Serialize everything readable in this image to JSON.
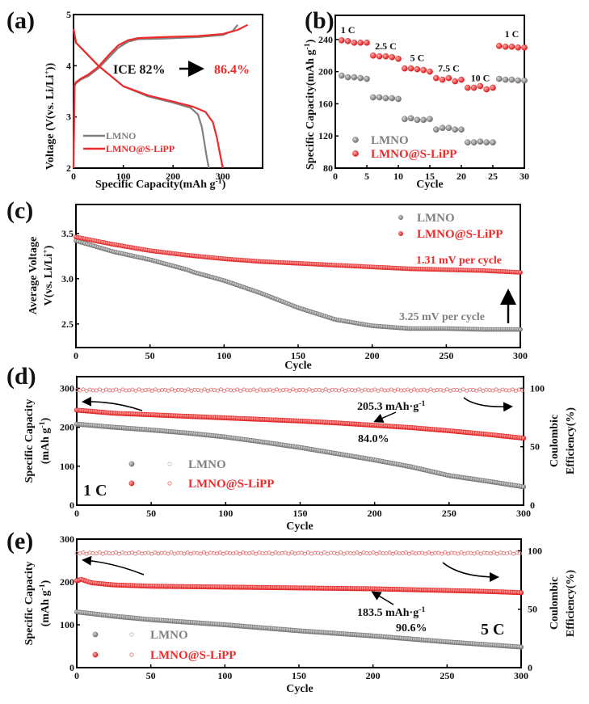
{
  "colors": {
    "lmno": "#808080",
    "lipp": "#ee2a2a",
    "ink": "#111111",
    "arrow": "#000000"
  },
  "chart_data": [
    {
      "panel": "(a)",
      "type": "line",
      "xlabel": "Specific Capacity(mAh g",
      "xlabel_sup": "-1",
      "xlabel_end": ")",
      "ylabel": "Voltage (V(vs. Li/Li",
      "ylabel_sup": "+",
      "ylabel_end": "))",
      "xlim": [
        0,
        380
      ],
      "ylim": [
        2,
        5
      ],
      "xticks": [
        0,
        100,
        200,
        300
      ],
      "yticks": [
        2,
        3,
        4,
        5
      ],
      "legend": [
        "LMNO",
        "LMNO@S-LiPP"
      ],
      "legend_position": "bottom-left",
      "annotation": {
        "text": "ICE 82%",
        "value_text": "86.4%"
      },
      "series": [
        {
          "name": "LMNO charge",
          "x": [
            0,
            2,
            5,
            15,
            30,
            50,
            70,
            90,
            110,
            130,
            180,
            250,
            300,
            320,
            330
          ],
          "y": [
            2.0,
            3.6,
            3.66,
            3.73,
            3.8,
            3.95,
            4.15,
            4.35,
            4.47,
            4.52,
            4.53,
            4.56,
            4.6,
            4.68,
            4.8
          ]
        },
        {
          "name": "LMNO discharge",
          "x": [
            0,
            5,
            20,
            50,
            100,
            150,
            200,
            235,
            250,
            258,
            263,
            268,
            272
          ],
          "y": [
            4.72,
            4.45,
            4.3,
            4.0,
            3.6,
            3.4,
            3.28,
            3.18,
            3.05,
            2.8,
            2.5,
            2.2,
            2.0
          ]
        },
        {
          "name": "LMNO@S-LiPP charge",
          "x": [
            0,
            2,
            5,
            15,
            30,
            50,
            70,
            90,
            110,
            130,
            180,
            250,
            300,
            330,
            350
          ],
          "y": [
            2.0,
            3.62,
            3.68,
            3.75,
            3.83,
            3.98,
            4.2,
            4.4,
            4.5,
            4.54,
            4.56,
            4.58,
            4.62,
            4.7,
            4.8
          ]
        },
        {
          "name": "LMNO@S-LiPP discharge",
          "x": [
            0,
            5,
            20,
            50,
            100,
            150,
            200,
            240,
            265,
            280,
            288,
            294,
            300
          ],
          "y": [
            4.72,
            4.45,
            4.3,
            4.0,
            3.6,
            3.42,
            3.3,
            3.2,
            3.1,
            2.9,
            2.6,
            2.3,
            2.0
          ]
        }
      ]
    },
    {
      "panel": "(b)",
      "type": "scatter",
      "xlabel": "Cycle",
      "ylabel": "Specific Capacity(mAh g",
      "ylabel_sup": "-1",
      "ylabel_end": ")",
      "xlim": [
        0,
        30
      ],
      "ylim": [
        80,
        270
      ],
      "xticks": [
        0,
        5,
        10,
        15,
        20,
        25,
        30
      ],
      "yticks": [
        80,
        120,
        160,
        200,
        240
      ],
      "legend": [
        "LMNO",
        "LMNO@S-LiPP"
      ],
      "legend_position": "bottom-left",
      "rate_labels": [
        {
          "text": "1 C",
          "x": 2,
          "y": 248
        },
        {
          "text": "2.5 C",
          "x": 8,
          "y": 228
        },
        {
          "text": "5 C",
          "x": 13,
          "y": 213
        },
        {
          "text": "7.5 C",
          "x": 18,
          "y": 200
        },
        {
          "text": "10 C",
          "x": 23,
          "y": 188
        },
        {
          "text": "1 C",
          "x": 28,
          "y": 243
        }
      ],
      "series": [
        {
          "name": "LMNO",
          "x": [
            1,
            2,
            3,
            4,
            5,
            6,
            7,
            8,
            9,
            10,
            11,
            12,
            13,
            14,
            15,
            16,
            17,
            18,
            19,
            20,
            21,
            22,
            23,
            24,
            25,
            26,
            27,
            28,
            29,
            30
          ],
          "values": [
            195,
            193,
            193,
            192,
            191,
            168,
            168,
            167,
            167,
            166,
            141,
            142,
            140,
            140,
            141,
            128,
            130,
            130,
            128,
            128,
            112,
            112,
            113,
            112,
            112,
            191,
            190,
            190,
            189,
            189
          ]
        },
        {
          "name": "LMNO@S-LiPP",
          "x": [
            1,
            2,
            3,
            4,
            5,
            6,
            7,
            8,
            9,
            10,
            11,
            12,
            13,
            14,
            15,
            16,
            17,
            18,
            19,
            20,
            21,
            22,
            23,
            24,
            25,
            26,
            27,
            28,
            29,
            30
          ],
          "values": [
            239,
            238,
            236,
            236,
            236,
            220,
            219,
            219,
            218,
            216,
            204,
            204,
            203,
            202,
            200,
            192,
            190,
            192,
            188,
            190,
            180,
            180,
            182,
            178,
            180,
            232,
            231,
            231,
            230,
            230
          ]
        }
      ]
    },
    {
      "panel": "(c)",
      "type": "scatter",
      "xlabel": "Cycle",
      "ylabel_line1": "Average Voltage",
      "ylabel_line2": "V(vs. Li/Li",
      "ylabel_sup": "+",
      "ylabel_end": ")",
      "xlim": [
        0,
        300
      ],
      "ylim": [
        2.24,
        3.82
      ],
      "xticks": [
        0,
        50,
        100,
        150,
        200,
        250,
        300
      ],
      "yticks": [
        2.5,
        3.0,
        3.5
      ],
      "legend": [
        "LMNO",
        "LMNO@S-LiPP"
      ],
      "legend_position": "top-right",
      "annotations": [
        {
          "text": "1.31 mV per cycle",
          "series": "LMNO@S-LiPP"
        },
        {
          "text": "3.25 mV per cycle",
          "series": "LMNO"
        }
      ],
      "series": [
        {
          "name": "LMNO",
          "x": [
            0,
            25,
            50,
            75,
            80,
            100,
            125,
            150,
            175,
            200,
            225,
            250,
            275,
            300
          ],
          "values": [
            3.42,
            3.3,
            3.21,
            3.1,
            3.07,
            2.98,
            2.84,
            2.68,
            2.55,
            2.48,
            2.45,
            2.45,
            2.44,
            2.44
          ]
        },
        {
          "name": "LMNO@S-LiPP",
          "x": [
            0,
            25,
            50,
            75,
            100,
            125,
            150,
            175,
            200,
            225,
            250,
            275,
            300
          ],
          "values": [
            3.46,
            3.38,
            3.31,
            3.26,
            3.22,
            3.19,
            3.17,
            3.15,
            3.13,
            3.11,
            3.1,
            3.09,
            3.07
          ]
        }
      ]
    },
    {
      "panel": "(d)",
      "type": "scatter",
      "rate_label": "1 C",
      "xlabel": "Cycle",
      "ylabel_line1": "Specific Capacity",
      "ylabel_line2": "(mAh g",
      "ylabel_sup": "-1",
      "ylabel_end": ")",
      "y2label_line1": "Coulombic",
      "y2label_line2": "Efficiency(%)",
      "xlim": [
        0,
        300
      ],
      "ylim": [
        0,
        330
      ],
      "y2lim": [
        0,
        110
      ],
      "xticks": [
        0,
        50,
        100,
        150,
        200,
        250,
        300
      ],
      "yticks": [
        0,
        100,
        200,
        300
      ],
      "y2ticks": [
        0,
        50,
        100
      ],
      "legend": [
        "LMNO",
        "LMNO@S-LiPP"
      ],
      "legend_position": "bottom-left",
      "annotations": [
        {
          "text": "205.3 mAh·g",
          "sup": "-1"
        },
        {
          "text": "84.0%"
        }
      ],
      "series": [
        {
          "name": "LMNO capacity",
          "x": [
            0,
            25,
            50,
            75,
            100,
            125,
            150,
            175,
            200,
            225,
            250,
            275,
            300
          ],
          "values": [
            208,
            200,
            193,
            185,
            175,
            162,
            148,
            132,
            116,
            98,
            76,
            62,
            47
          ]
        },
        {
          "name": "LMNO@S-LiPP capacity",
          "x": [
            0,
            25,
            50,
            75,
            100,
            125,
            150,
            175,
            200,
            225,
            250,
            275,
            300
          ],
          "values": [
            244,
            236,
            232,
            228,
            224,
            220,
            216,
            211,
            205,
            199,
            191,
            182,
            172
          ]
        },
        {
          "name": "LMNO efficiency",
          "x": [
            0,
            300
          ],
          "values": [
            98.5,
            98.5
          ]
        },
        {
          "name": "LMNO@S-LiPP efficiency",
          "x": [
            0,
            300
          ],
          "values": [
            98.5,
            98.5
          ]
        }
      ]
    },
    {
      "panel": "(e)",
      "type": "scatter",
      "rate_label": "5 C",
      "xlabel": "Cycle",
      "ylabel_line1": "Specific Capacity",
      "ylabel_line2": "(mAh g",
      "ylabel_sup": "-1",
      "ylabel_end": ")",
      "y2label_line1": "Coulombic",
      "y2label_line2": "Efficiency(%)",
      "xlim": [
        0,
        300
      ],
      "ylim": [
        0,
        300
      ],
      "y2lim": [
        0,
        110
      ],
      "xticks": [
        0,
        50,
        100,
        150,
        200,
        250,
        300
      ],
      "yticks": [
        0,
        100,
        200,
        300
      ],
      "y2ticks": [
        0,
        50,
        100
      ],
      "legend": [
        "LMNO",
        "LMNO@S-LiPP"
      ],
      "legend_position": "bottom-left",
      "annotations": [
        {
          "text": "183.5 mAh·g",
          "sup": "-1"
        },
        {
          "text": "90.6%"
        }
      ],
      "series": [
        {
          "name": "LMNO capacity",
          "x": [
            0,
            25,
            50,
            75,
            100,
            125,
            150,
            175,
            200,
            225,
            250,
            275,
            300
          ],
          "values": [
            130,
            120,
            112,
            106,
            100,
            93,
            86,
            80,
            74,
            67,
            60,
            54,
            48
          ]
        },
        {
          "name": "LMNO@S-LiPP capacity",
          "x": [
            0,
            3,
            10,
            25,
            50,
            75,
            100,
            125,
            150,
            175,
            200,
            225,
            250,
            275,
            300
          ],
          "values": [
            203,
            206,
            198,
            193,
            190,
            189,
            188,
            187,
            186,
            185,
            184,
            182,
            180,
            178,
            175
          ]
        },
        {
          "name": "LMNO efficiency",
          "x": [
            0,
            300
          ],
          "values": [
            98,
            98
          ]
        },
        {
          "name": "LMNO@S-LiPP efficiency",
          "x": [
            0,
            300
          ],
          "values": [
            98,
            98
          ]
        }
      ]
    }
  ]
}
